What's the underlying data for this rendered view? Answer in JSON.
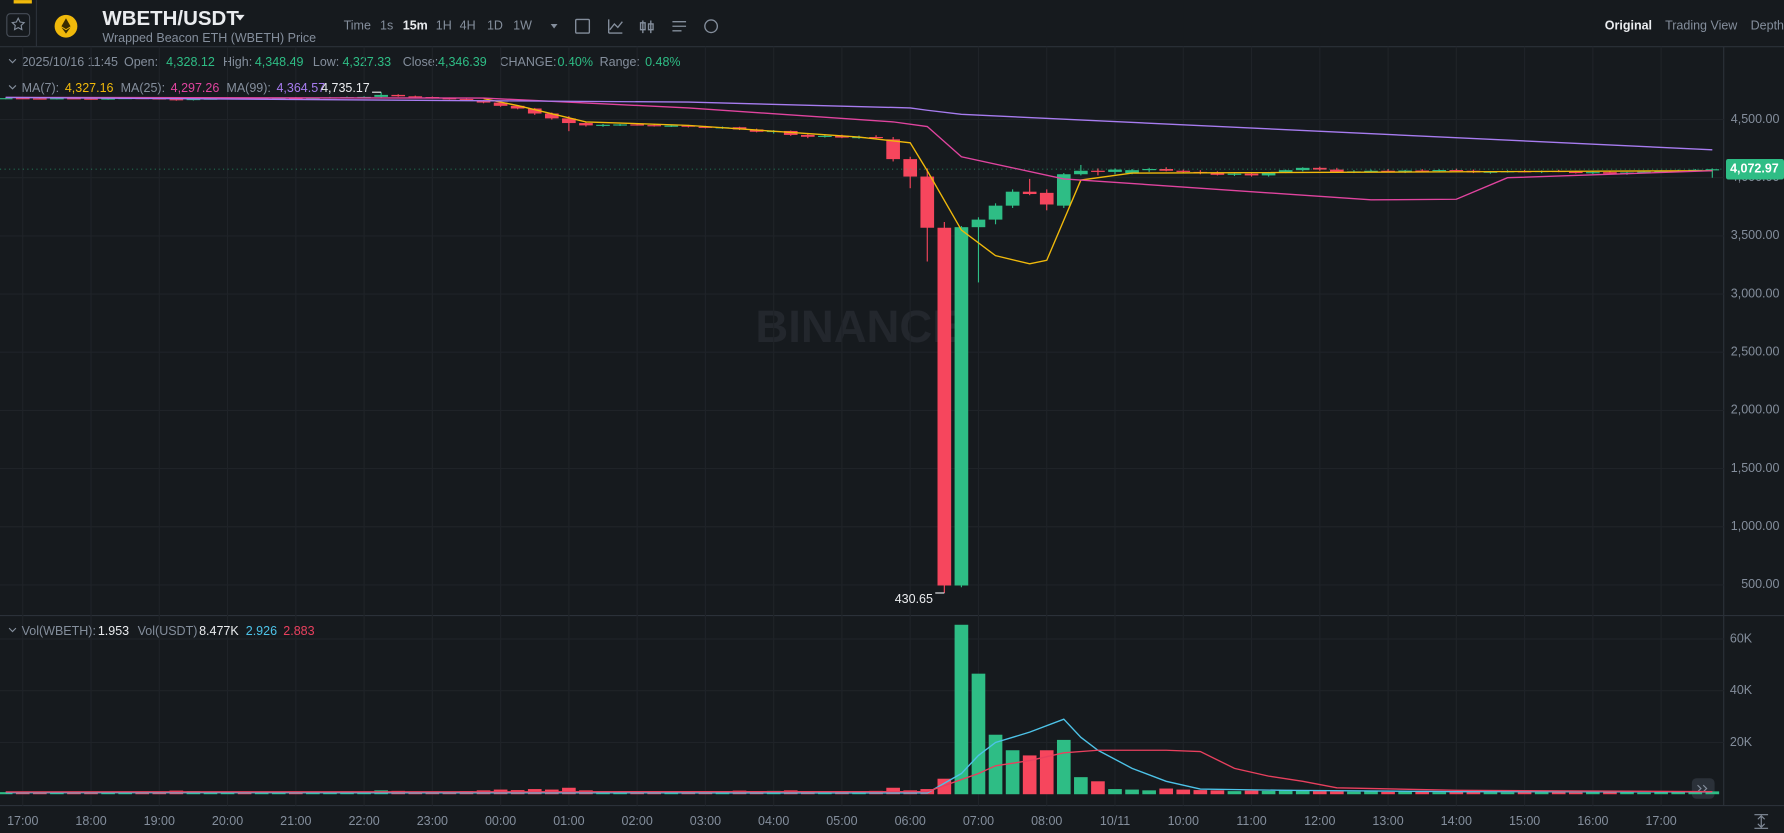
{
  "header": {
    "symbol": "WBETH/USDT",
    "subtitle": "Wrapped Beacon ETH (WBETH) Price",
    "intervals": [
      "Time",
      "1s",
      "15m",
      "1H",
      "4H",
      "1D",
      "1W"
    ],
    "views": [
      "Original",
      "Trading View",
      "Depth"
    ]
  },
  "info": {
    "date": "2025/10/16 11:45",
    "fields": [
      {
        "label": "Open:",
        "value": "4,328.12"
      },
      {
        "label": "High:",
        "value": "4,348.49"
      },
      {
        "label": "Low:",
        "value": "4,327.33"
      },
      {
        "label": "Close:",
        "value": "4,346.39"
      },
      {
        "label": "CHANGE:",
        "value": "0.40%"
      },
      {
        "label": "Range:",
        "value": "0.48%"
      }
    ]
  },
  "watermark": "BINANCE",
  "chart_data": [
    {
      "type": "candlestick",
      "up_color": "#2ebd85",
      "down_color": "#f6465d",
      "grid": true,
      "categories": [
        null,
        "17:00",
        null,
        null,
        null,
        "18:00",
        null,
        null,
        null,
        "19:00",
        null,
        null,
        null,
        "20:00",
        null,
        null,
        null,
        "21:00",
        null,
        null,
        null,
        "22:00",
        null,
        null,
        null,
        "23:00",
        null,
        null,
        null,
        "00:00",
        null,
        null,
        null,
        "01:00",
        null,
        null,
        null,
        "02:00",
        null,
        null,
        null,
        "03:00",
        null,
        null,
        null,
        "04:00",
        null,
        null,
        null,
        "05:00",
        null,
        null,
        null,
        "06:00",
        null,
        null,
        null,
        "07:00",
        null,
        null,
        null,
        "08:00",
        null,
        null,
        null,
        "10/11",
        null,
        null,
        null,
        "10:00",
        null,
        null,
        null,
        "11:00",
        null,
        null,
        null,
        "12:00",
        null,
        null,
        null,
        "13:00",
        null,
        null,
        null,
        "14:00",
        null,
        null,
        null,
        "15:00",
        null,
        null,
        null,
        "16:00",
        null,
        null,
        null,
        "17:00",
        null,
        null,
        null
      ],
      "values": [
        [
          4680,
          4688,
          4675,
          4684
        ],
        [
          4684,
          4690,
          4679,
          4681
        ],
        [
          4681,
          4686,
          4674,
          4678
        ],
        [
          4678,
          4685,
          4672,
          4683
        ],
        [
          4683,
          4689,
          4678,
          4680
        ],
        [
          4680,
          4684,
          4671,
          4676
        ],
        [
          4676,
          4683,
          4670,
          4681
        ],
        [
          4681,
          4688,
          4677,
          4685
        ],
        [
          4685,
          4690,
          4679,
          4682
        ],
        [
          4682,
          4686,
          4672,
          4675
        ],
        [
          4675,
          4679,
          4662,
          4667
        ],
        [
          4667,
          4680,
          4664,
          4678
        ],
        [
          4678,
          4684,
          4672,
          4680
        ],
        [
          4680,
          4686,
          4675,
          4683
        ],
        [
          4683,
          4688,
          4677,
          4679
        ],
        [
          4679,
          4685,
          4673,
          4682
        ],
        [
          4682,
          4690,
          4678,
          4686
        ],
        [
          4686,
          4692,
          4680,
          4684
        ],
        [
          4684,
          4690,
          4678,
          4687
        ],
        [
          4687,
          4695,
          4682,
          4690
        ],
        [
          4690,
          4698,
          4684,
          4693
        ],
        [
          4693,
          4700,
          4686,
          4695
        ],
        [
          4695,
          4735.17,
          4690,
          4712
        ],
        [
          4712,
          4718,
          4696,
          4700
        ],
        [
          4700,
          4706,
          4690,
          4694
        ],
        [
          4694,
          4698,
          4680,
          4684
        ],
        [
          4684,
          4690,
          4672,
          4676
        ],
        [
          4676,
          4680,
          4660,
          4664
        ],
        [
          4664,
          4668,
          4640,
          4646
        ],
        [
          4646,
          4650,
          4610,
          4618
        ],
        [
          4618,
          4624,
          4588,
          4595
        ],
        [
          4595,
          4600,
          4540,
          4552
        ],
        [
          4552,
          4560,
          4500,
          4510
        ],
        [
          4510,
          4530,
          4400,
          4470
        ],
        [
          4470,
          4478,
          4440,
          4450
        ],
        [
          4450,
          4462,
          4438,
          4455
        ],
        [
          4455,
          4462,
          4445,
          4458
        ],
        [
          4458,
          4464,
          4448,
          4452
        ],
        [
          4452,
          4460,
          4440,
          4445
        ],
        [
          4445,
          4455,
          4436,
          4448
        ],
        [
          4448,
          4454,
          4432,
          4438
        ],
        [
          4438,
          4446,
          4425,
          4430
        ],
        [
          4430,
          4440,
          4420,
          4434
        ],
        [
          4434,
          4438,
          4410,
          4415
        ],
        [
          4415,
          4422,
          4390,
          4395
        ],
        [
          4395,
          4410,
          4380,
          4402
        ],
        [
          4402,
          4406,
          4360,
          4368
        ],
        [
          4368,
          4385,
          4340,
          4352
        ],
        [
          4352,
          4372,
          4345,
          4360
        ],
        [
          4360,
          4370,
          4340,
          4345
        ],
        [
          4345,
          4362,
          4335,
          4350
        ],
        [
          4350,
          4365,
          4335,
          4340
        ],
        [
          4330,
          4350,
          4140,
          4160
        ],
        [
          4160,
          4180,
          3910,
          4010
        ],
        [
          4010,
          4080,
          3280,
          3570
        ],
        [
          3570,
          3620,
          430.65,
          495
        ],
        [
          495,
          3585,
          480,
          3575
        ],
        [
          3575,
          3660,
          3100,
          3640
        ],
        [
          3640,
          3780,
          3600,
          3760
        ],
        [
          3760,
          3900,
          3740,
          3880
        ],
        [
          3880,
          3990,
          3850,
          3860
        ],
        [
          3870,
          3900,
          3720,
          3770
        ],
        [
          3760,
          4040,
          3740,
          4030
        ],
        [
          4030,
          4110,
          4020,
          4060
        ],
        [
          4060,
          4080,
          4020,
          4050
        ],
        [
          4050,
          4080,
          4030,
          4070
        ],
        [
          4040,
          4075,
          4030,
          4065
        ],
        [
          4065,
          4085,
          4050,
          4075
        ],
        [
          4075,
          4090,
          4055,
          4060
        ],
        [
          4060,
          4070,
          4040,
          4050
        ],
        [
          4050,
          4065,
          4030,
          4040
        ],
        [
          4040,
          4055,
          4020,
          4025
        ],
        [
          4025,
          4040,
          4015,
          4035
        ],
        [
          4035,
          4045,
          4010,
          4020
        ],
        [
          4020,
          4050,
          4010,
          4045
        ],
        [
          4045,
          4070,
          4040,
          4065
        ],
        [
          4065,
          4090,
          4055,
          4085
        ],
        [
          4085,
          4095,
          4060,
          4070
        ],
        [
          4070,
          4085,
          4045,
          4050
        ],
        [
          4050,
          4065,
          4040,
          4055
        ],
        [
          4055,
          4070,
          4045,
          4060
        ],
        [
          4060,
          4075,
          4048,
          4052
        ],
        [
          4052,
          4068,
          4040,
          4062
        ],
        [
          4062,
          4074,
          4050,
          4058
        ],
        [
          4058,
          4072,
          4046,
          4066
        ],
        [
          4066,
          4078,
          4055,
          4060
        ],
        [
          4060,
          4070,
          4040,
          4045
        ],
        [
          4045,
          4058,
          4035,
          4052
        ],
        [
          4052,
          4064,
          4044,
          4056
        ],
        [
          4056,
          4066,
          4046,
          4050
        ],
        [
          4050,
          4062,
          4040,
          4058
        ],
        [
          4058,
          4068,
          4048,
          4052
        ],
        [
          4052,
          4060,
          4036,
          4040
        ],
        [
          4040,
          4055,
          4030,
          4048
        ],
        [
          4048,
          4058,
          4030,
          4035
        ],
        [
          4035,
          4050,
          4025,
          4045
        ],
        [
          4045,
          4060,
          4038,
          4052
        ],
        [
          4052,
          4065,
          4042,
          4058
        ],
        [
          4058,
          4070,
          4048,
          4062
        ],
        [
          4062,
          4075,
          4050,
          4068
        ],
        [
          4068,
          4080,
          4000,
          4072.97
        ]
      ],
      "ylim": [
        246,
        5126
      ],
      "yticks": [
        {
          "value": 500,
          "label": "500.00"
        },
        {
          "value": 1000,
          "label": "1,000.00"
        },
        {
          "value": 1500,
          "label": "1,500.00"
        },
        {
          "value": 2000,
          "label": "2,000.00"
        },
        {
          "value": 2500,
          "label": "2,500.00"
        },
        {
          "value": 3000,
          "label": "3,000.00"
        },
        {
          "value": 3500,
          "label": "3,500.00"
        },
        {
          "value": 4000,
          "label": "4,000.00"
        },
        {
          "value": 4500,
          "label": "4,500.00"
        }
      ],
      "lines": [
        {
          "name": "MA(7):",
          "legend_value": "4,327.16",
          "color": "#f0b90b",
          "x": [
            28,
            30,
            34,
            40,
            50,
            53,
            54,
            56,
            58,
            60,
            61,
            63,
            66,
            100
          ],
          "values": [
            4680,
            4620,
            4480,
            4450,
            4350,
            4300,
            4060,
            3550,
            3330,
            3260,
            3290,
            3980,
            4040,
            4060
          ]
        },
        {
          "name": "MA(25):",
          "legend_value": "4,297.26",
          "color": "#e0449f",
          "x": [
            0,
            28,
            40,
            52,
            54,
            56,
            62,
            80,
            85,
            88,
            100
          ],
          "values": [
            4690,
            4685,
            4600,
            4480,
            4440,
            4180,
            3990,
            3810,
            3815,
            4000,
            4060
          ]
        },
        {
          "name": "MA(99):",
          "legend_value": "4,364.57",
          "color": "#a77cf0",
          "x": [
            0,
            40,
            53,
            54,
            56,
            100
          ],
          "values": [
            4690,
            4650,
            4600,
            4580,
            4545,
            4240
          ]
        }
      ],
      "annotations": [
        {
          "x": 22,
          "at": "high",
          "label": "4,735.17"
        },
        {
          "x": 55,
          "at": "low",
          "label": "430.65"
        }
      ],
      "last_price": "4,072.97"
    },
    {
      "type": "bar",
      "grid": true,
      "legend": [
        {
          "label": "Vol(WBETH):",
          "value": "1.953"
        },
        {
          "label": "Vol(USDT)",
          "value": "8.477K"
        }
      ],
      "values": [
        800,
        600,
        900,
        700,
        500,
        650,
        720,
        580,
        900,
        1000,
        1400,
        1200,
        700,
        600,
        800,
        650,
        700,
        900,
        750,
        600,
        1100,
        900,
        1500,
        1300,
        800,
        900,
        1000,
        1200,
        1500,
        1800,
        1600,
        2000,
        1800,
        2500,
        1500,
        1200,
        900,
        800,
        1000,
        900,
        1100,
        800,
        1200,
        1400,
        1000,
        1300,
        1500,
        1100,
        900,
        1000,
        1200,
        1300,
        2500,
        1500,
        2000,
        6000,
        65500,
        46600,
        23000,
        17000,
        15000,
        17000,
        21000,
        6600,
        5000,
        2000,
        1800,
        1500,
        2200,
        1800,
        1600,
        1500,
        1200,
        1400,
        1300,
        1700,
        1500,
        1200,
        1100,
        1000,
        1200,
        900,
        1000,
        1100,
        800,
        900,
        1000,
        800,
        700,
        900,
        800,
        1000,
        700,
        800,
        900,
        700,
        600,
        800,
        900,
        1000,
        1100
      ],
      "ylim": [
        -4400,
        68600
      ],
      "yticks": [
        {
          "value": 20000,
          "label": "20K"
        },
        {
          "value": 40000,
          "label": "40K"
        },
        {
          "value": 60000,
          "label": "60K"
        }
      ],
      "lines": [
        {
          "legend_value": "2.926",
          "color": "#4dc3e8",
          "x": [
            0,
            54,
            56,
            57,
            58,
            60,
            62,
            63,
            64,
            66,
            68,
            70,
            75,
            85,
            100
          ],
          "values": [
            600,
            500,
            8000,
            15000,
            20000,
            24000,
            29000,
            22000,
            17000,
            10000,
            5000,
            2000,
            1500,
            1000,
            900
          ]
        },
        {
          "legend_value": "2.883",
          "color": "#e8405e",
          "x": [
            0,
            54,
            57,
            58,
            60,
            62,
            64,
            68,
            70,
            72,
            74,
            76,
            78,
            85,
            100
          ],
          "values": [
            900,
            1000,
            8000,
            11000,
            13000,
            16000,
            17000,
            17000,
            16500,
            10000,
            7000,
            5000,
            2500,
            1500,
            1000
          ]
        }
      ]
    }
  ]
}
